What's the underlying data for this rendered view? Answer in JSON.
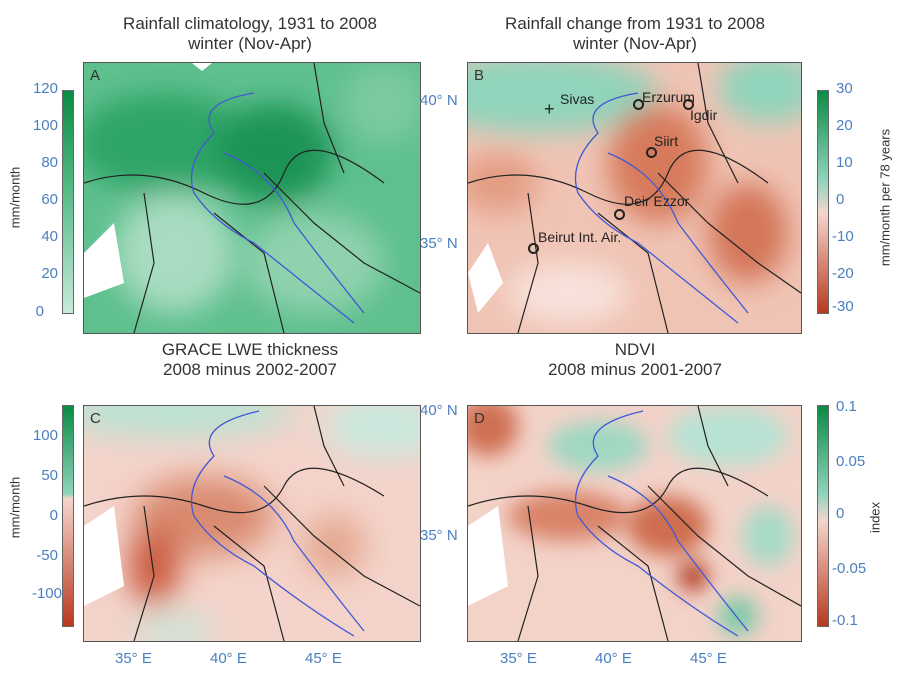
{
  "panels": [
    {
      "letter": "A",
      "title1": "Rainfall climatology, 1931 to 2008",
      "title2": "winter (Nov-Apr)",
      "colorbar": {
        "label": "mm/month",
        "ticks": [
          "120",
          "100",
          "80",
          "60",
          "40",
          "20",
          "0"
        ],
        "colors": [
          "#0b8a45",
          "#c8eadb"
        ]
      }
    },
    {
      "letter": "B",
      "title1": "Rainfall change from 1931 to 2008",
      "title2": "winter (Nov-Apr)",
      "colorbar": {
        "label": "mm/month per 78 years",
        "ticks": [
          "30",
          "20",
          "10",
          "0",
          "-10",
          "-20",
          "-30"
        ],
        "colors": [
          "#0b8a45",
          "#f7dcd6",
          "#b8391e"
        ]
      },
      "cities": [
        "Sivas",
        "Erzurum",
        "Igdir",
        "Siirt",
        "Deir Ezzor",
        "Beirut Int. Air."
      ]
    },
    {
      "letter": "C",
      "title1": "GRACE LWE thickness",
      "title2": "2008 minus 2002-2007",
      "colorbar": {
        "label": "mm/month",
        "ticks": [
          "100",
          "50",
          "0",
          "-50",
          "-100"
        ]
      }
    },
    {
      "letter": "D",
      "title1": "NDVI",
      "title2": "2008 minus 2001-2007",
      "colorbar": {
        "label": "index",
        "ticks": [
          "0.1",
          "0.05",
          "0",
          "-0.05",
          "-0.1"
        ]
      }
    }
  ],
  "lat_labels": [
    "40° N",
    "35° N"
  ],
  "lon_labels": [
    "35° E",
    "40° E",
    "45° E"
  ]
}
